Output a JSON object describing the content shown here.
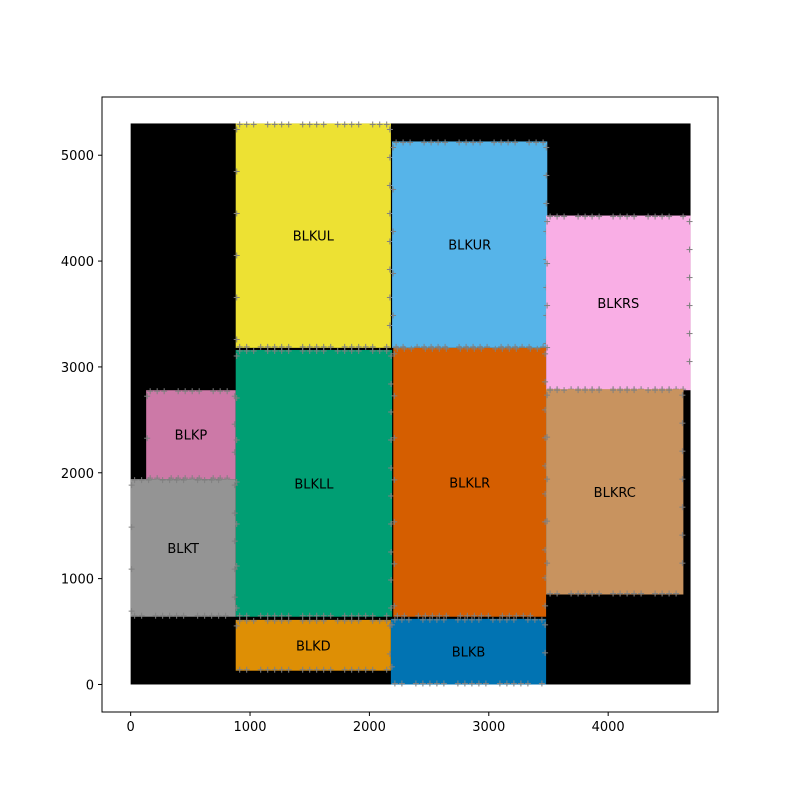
{
  "chart_data": {
    "type": "floorplan",
    "title": "",
    "xlabel": "",
    "ylabel": "",
    "xlim": [
      -240,
      4920
    ],
    "ylim": [
      -260,
      5550
    ],
    "xticks": [
      0,
      1000,
      2000,
      3000,
      4000
    ],
    "yticks": [
      0,
      1000,
      2000,
      3000,
      4000,
      5000
    ],
    "grid": false,
    "die": {
      "x0": 0,
      "y0": 0,
      "x1": 4690,
      "y1": 5300,
      "color": "#000000"
    },
    "pin_color": "#808080",
    "blocks": [
      {
        "name": "BLKUL",
        "x0": 880,
        "y0": 3180,
        "x1": 2180,
        "y1": 5300,
        "color": "#ede133"
      },
      {
        "name": "BLKUR",
        "x0": 2190,
        "y0": 3180,
        "x1": 3490,
        "y1": 5130,
        "color": "#56b4e9"
      },
      {
        "name": "BLKRS",
        "x0": 3480,
        "y0": 2780,
        "x1": 4690,
        "y1": 4430,
        "color": "#f9aee5"
      },
      {
        "name": "BLKP",
        "x0": 130,
        "y0": 1940,
        "x1": 880,
        "y1": 2780,
        "color": "#cc79a7"
      },
      {
        "name": "BLKLL",
        "x0": 880,
        "y0": 640,
        "x1": 2190,
        "y1": 3160,
        "color": "#009e73"
      },
      {
        "name": "BLKLR",
        "x0": 2200,
        "y0": 640,
        "x1": 3480,
        "y1": 3180,
        "color": "#d55e00"
      },
      {
        "name": "BLKRC",
        "x0": 3480,
        "y0": 850,
        "x1": 4630,
        "y1": 2790,
        "color": "#c8935f"
      },
      {
        "name": "BLKT",
        "x0": 0,
        "y0": 640,
        "x1": 880,
        "y1": 1940,
        "color": "#949494"
      },
      {
        "name": "BLKD",
        "x0": 880,
        "y0": 130,
        "x1": 2180,
        "y1": 610,
        "color": "#de8f05"
      },
      {
        "name": "BLKB",
        "x0": 2180,
        "y0": 0,
        "x1": 3480,
        "y1": 620,
        "color": "#0173b2"
      }
    ]
  }
}
